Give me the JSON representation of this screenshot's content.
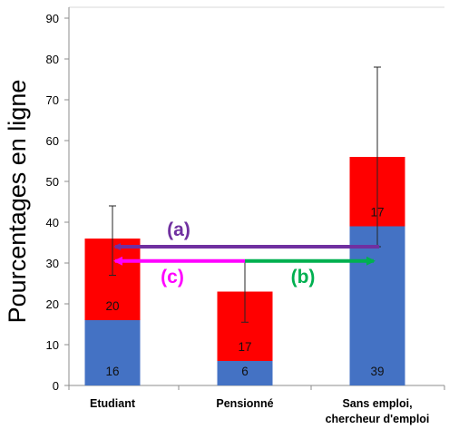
{
  "chart_data": {
    "type": "bar",
    "stacked": true,
    "ylabel": "Pourcentages en ligne",
    "xlabel": "",
    "title": "",
    "ylim": [
      0,
      90
    ],
    "yticks": [
      0,
      10,
      20,
      30,
      40,
      50,
      60,
      70,
      80,
      90
    ],
    "categories": [
      [
        "Etudiant"
      ],
      [
        "Pensionné"
      ],
      [
        "Sans emploi,",
        "chercheur d'emploi"
      ]
    ],
    "series": [
      {
        "color": "#4472C4",
        "values": [
          16,
          6,
          39
        ]
      },
      {
        "color": "#FF0000",
        "values": [
          20,
          17,
          17
        ]
      }
    ],
    "error_bars": [
      {
        "category": 0,
        "center": 35.5,
        "low": 27,
        "high": 44
      },
      {
        "category": 1,
        "center": 23,
        "low": 15.5,
        "high": 30.5
      },
      {
        "category": 2,
        "center": 56,
        "low": 34,
        "high": 78
      }
    ],
    "annotations": [
      {
        "label": "(a)",
        "color": "#7030A0",
        "from_category": 2,
        "to_category": 0,
        "y": 34
      },
      {
        "label": "(b)",
        "color": "#00B050",
        "from_category": 1,
        "to_category": 2,
        "y": 30.5
      },
      {
        "label": "(c)",
        "color": "#FF00FF",
        "from_category": 1,
        "to_category": 0,
        "y": 30.5
      }
    ]
  }
}
